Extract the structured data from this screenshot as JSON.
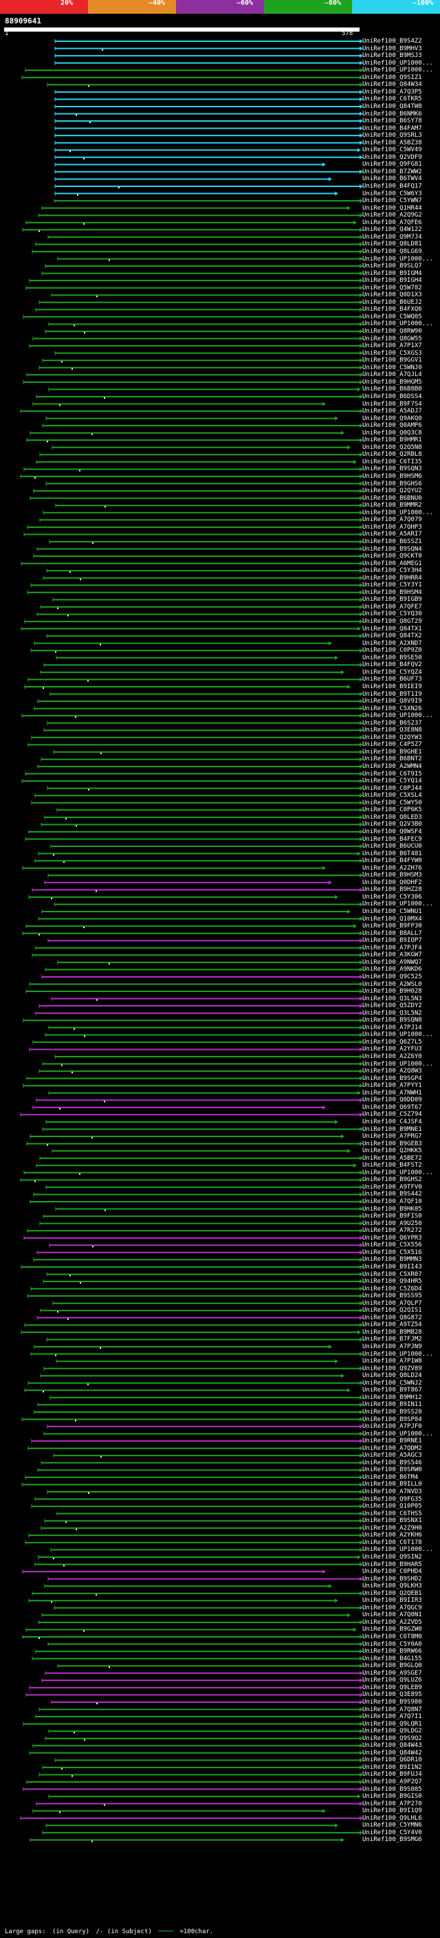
{
  "query": {
    "name": "88909641",
    "start": "1",
    "end": "578"
  },
  "scale": {
    "labels": [
      "20%",
      "~40%",
      "~60%",
      "~80%",
      "~100%"
    ],
    "colors": [
      "#e8262a",
      "#e48b27",
      "#8d2f9e",
      "#1da31d",
      "#2ad4ef"
    ]
  },
  "hits": [
    {
      "id": "UniRef100_B9S4Z2",
      "color": "#2ad4ef"
    },
    {
      "id": "UniRef100_B9MHV3",
      "color": "#2ad4ef"
    },
    {
      "id": "UniRef100_B9MSJ3",
      "color": "#2ad4ef"
    },
    {
      "id": "UniRef100_UP1000...",
      "color": "#2ad4ef"
    },
    {
      "id": "UniRef100_UP1000...",
      "color": "#1da31d"
    },
    {
      "id": "UniRef100_Q9SIZ1",
      "color": "#1da31d"
    },
    {
      "id": "UniRef100_Q84W34",
      "color": "#1da31d"
    },
    {
      "id": "UniRef100_A7Q3P5",
      "color": "#2ad4ef"
    },
    {
      "id": "UniRef100_C6TKR5",
      "color": "#2ad4ef"
    },
    {
      "id": "UniRef100_Q84TW8",
      "color": "#2ad4ef"
    },
    {
      "id": "UniRef100_B6NMK6",
      "color": "#2ad4ef"
    },
    {
      "id": "UniRef100_B6SY78",
      "color": "#2ad4ef"
    },
    {
      "id": "UniRef100_B4FAM7",
      "color": "#2ad4ef"
    },
    {
      "id": "UniRef100_Q9SRL3",
      "color": "#2ad4ef"
    },
    {
      "id": "UniRef100_A5BZ38",
      "color": "#2ad4ef"
    },
    {
      "id": "UniRef100_C5WV49",
      "color": "#2ad4ef"
    },
    {
      "id": "UniRef100_Q2VDF9",
      "color": "#2ad4ef"
    },
    {
      "id": "UniRef100_Q9FG81",
      "color": "#2ad4ef"
    },
    {
      "id": "UniRef100_B7ZWW2",
      "color": "#2ad4ef"
    },
    {
      "id": "UniRef100_B6TWV4",
      "color": "#2ad4ef"
    },
    {
      "id": "UniRef100_B4FQ17",
      "color": "#2ad4ef"
    },
    {
      "id": "UniRef100_C5W6Y3",
      "color": "#2ad4ef"
    },
    {
      "id": "UniRef100_C5YWN7",
      "color": "#1da31d"
    },
    {
      "id": "UniRef100_Q1HR44",
      "color": "#1da31d"
    },
    {
      "id": "UniRef100_A2Q9G2",
      "color": "#1da31d"
    },
    {
      "id": "UniRef100_A7QFE6",
      "color": "#1da31d"
    },
    {
      "id": "UniRef100_Q4W122",
      "color": "#1da31d"
    },
    {
      "id": "UniRef100_Q9M7J4",
      "color": "#1da31d"
    },
    {
      "id": "UniRef100_Q8LD81",
      "color": "#1da31d"
    },
    {
      "id": "UniRef100_Q8LG69",
      "color": "#1da31d"
    },
    {
      "id": "UniRef100_UP1000...",
      "color": "#1da31d"
    },
    {
      "id": "UniRef100_B9SLQ7",
      "color": "#1da31d"
    },
    {
      "id": "UniRef100_B9IGM4",
      "color": "#1da31d"
    },
    {
      "id": "UniRef100_B9IGH4",
      "color": "#1da31d"
    },
    {
      "id": "UniRef100_Q5W782",
      "color": "#1da31d"
    },
    {
      "id": "UniRef100_Q0D1X3",
      "color": "#1da31d"
    },
    {
      "id": "UniRef100_B6UEJ2",
      "color": "#1da31d"
    },
    {
      "id": "UniRef100_B4FXQ6",
      "color": "#1da31d"
    },
    {
      "id": "UniRef100_C5WQ05",
      "color": "#1da31d"
    },
    {
      "id": "UniRef100_UP1000...",
      "color": "#1da31d"
    },
    {
      "id": "UniRef100_Q8RW90",
      "color": "#1da31d"
    },
    {
      "id": "UniRef100_Q8GW55",
      "color": "#1da31d"
    },
    {
      "id": "UniRef100_A7P1X7",
      "color": "#1da31d"
    },
    {
      "id": "UniRef100_C5XGS3",
      "color": "#1da31d"
    },
    {
      "id": "UniRef100_B9GGV1",
      "color": "#1da31d"
    },
    {
      "id": "UniRef100_C5WNJ0",
      "color": "#1da31d"
    },
    {
      "id": "UniRef100_A7QJL4",
      "color": "#1da31d"
    },
    {
      "id": "UniRef100_B9HGM5",
      "color": "#1da31d"
    },
    {
      "id": "UniRef100_B6B8B0",
      "color": "#1da31d"
    },
    {
      "id": "UniRef100_B6DSS4",
      "color": "#1da31d"
    },
    {
      "id": "UniRef100_B9F7S4",
      "color": "#1da31d"
    },
    {
      "id": "UniRef100_A5ADJ7",
      "color": "#1da31d"
    },
    {
      "id": "UniRef100_Q9AKQ0",
      "color": "#1da31d"
    },
    {
      "id": "UniRef100_Q0AMP6",
      "color": "#1da31d"
    },
    {
      "id": "UniRef100_Q0Q3C8",
      "color": "#1da31d"
    },
    {
      "id": "UniRef100_B9HMR1",
      "color": "#1da31d"
    },
    {
      "id": "UniRef100_Q2Q5N8",
      "color": "#1da31d"
    },
    {
      "id": "UniRef100_Q2RBL8",
      "color": "#1da31d"
    },
    {
      "id": "UniRef100_C6TI35",
      "color": "#1da31d"
    },
    {
      "id": "UniRef100_B9SQN3",
      "color": "#1da31d"
    },
    {
      "id": "UniRef100_B9HSM6",
      "color": "#1da31d"
    },
    {
      "id": "UniRef100_B9GHS6",
      "color": "#1da31d"
    },
    {
      "id": "UniRef100_Q2QYU2",
      "color": "#1da31d"
    },
    {
      "id": "UniRef100_B6BNU0",
      "color": "#1da31d"
    },
    {
      "id": "UniRef100_B9MMR2",
      "color": "#1da31d"
    },
    {
      "id": "UniRef100_UP1000...",
      "color": "#1da31d"
    },
    {
      "id": "UniRef100_A7Q079",
      "color": "#1da31d"
    },
    {
      "id": "UniRef100_A7QHP3",
      "color": "#1da31d"
    },
    {
      "id": "UniRef100_A5ARI7",
      "color": "#1da31d"
    },
    {
      "id": "UniRef100_B6SSZ1",
      "color": "#1da31d"
    },
    {
      "id": "UniRef100_B9SQN4",
      "color": "#1da31d"
    },
    {
      "id": "UniRef100_Q9CKT0",
      "color": "#1da31d"
    },
    {
      "id": "UniRef100_A6MEG1",
      "color": "#1da31d"
    },
    {
      "id": "UniRef100_C5Y3H4",
      "color": "#1da31d"
    },
    {
      "id": "UniRef100_B9HRR4",
      "color": "#1da31d"
    },
    {
      "id": "UniRef100_C5Y3Y1",
      "color": "#1da31d"
    },
    {
      "id": "UniRef100_B9HSM4",
      "color": "#1da31d"
    },
    {
      "id": "UniRef100_B9IGB9",
      "color": "#1da31d"
    },
    {
      "id": "UniRef100_A7QFE7",
      "color": "#1da31d"
    },
    {
      "id": "UniRef100_C5YQ30",
      "color": "#1da31d"
    },
    {
      "id": "UniRef100_Q8GT29",
      "color": "#1da31d"
    },
    {
      "id": "UniRef100_Q84TX1",
      "color": "#1da31d"
    },
    {
      "id": "UniRef100_Q84TX2",
      "color": "#1da31d"
    },
    {
      "id": "UniRef100_A2XND7",
      "color": "#1da31d"
    },
    {
      "id": "UniRef100_C0P9Z0",
      "color": "#1da31d"
    },
    {
      "id": "UniRef100_B9SE50",
      "color": "#1da31d"
    },
    {
      "id": "UniRef100_B4FQV2",
      "color": "#1da31d"
    },
    {
      "id": "UniRef100_C5YQZ4",
      "color": "#1da31d"
    },
    {
      "id": "UniRef100_B6UF73",
      "color": "#1da31d"
    },
    {
      "id": "UniRef100_B9IEI9",
      "color": "#1da31d"
    },
    {
      "id": "UniRef100_B9T1I9",
      "color": "#1da31d"
    },
    {
      "id": "UniRef100_Q8V9I9",
      "color": "#1da31d"
    },
    {
      "id": "UniRef100_C5XN26",
      "color": "#1da31d"
    },
    {
      "id": "UniRef100_UP1000...",
      "color": "#1da31d"
    },
    {
      "id": "UniRef100_B6S237",
      "color": "#1da31d"
    },
    {
      "id": "UniRef100_Q3E8N8",
      "color": "#1da31d"
    },
    {
      "id": "UniRef100_Q2QYW3",
      "color": "#1da31d"
    },
    {
      "id": "UniRef100_C4P5Z7",
      "color": "#1da31d"
    },
    {
      "id": "UniRef100_B9GHE1",
      "color": "#1da31d"
    },
    {
      "id": "UniRef100_B6BNT2",
      "color": "#1da31d"
    },
    {
      "id": "UniRef100_A2WMN4",
      "color": "#1da31d"
    },
    {
      "id": "UniRef100_C6T9I5",
      "color": "#1da31d"
    },
    {
      "id": "UniRef100_C5YQ14",
      "color": "#1da31d"
    },
    {
      "id": "UniRef100_C0PJ44",
      "color": "#1da31d"
    },
    {
      "id": "UniRef100_C5XSL4",
      "color": "#1da31d"
    },
    {
      "id": "UniRef100_C5WY50",
      "color": "#1da31d"
    },
    {
      "id": "UniRef100_C0P6K5",
      "color": "#1da31d"
    },
    {
      "id": "UniRef100_Q8LED3",
      "color": "#1da31d"
    },
    {
      "id": "UniRef100_Q2V3B0",
      "color": "#1da31d"
    },
    {
      "id": "UniRef100_Q0WSF4",
      "color": "#1da31d"
    },
    {
      "id": "UniRef100_B4FEC9",
      "color": "#1da31d"
    },
    {
      "id": "UniRef100_B6UCU0",
      "color": "#1da31d"
    },
    {
      "id": "UniRef100_B6T481",
      "color": "#1da31d"
    },
    {
      "id": "UniRef100_B4FYW0",
      "color": "#1da31d"
    },
    {
      "id": "UniRef100_A2ZH76",
      "color": "#1da31d"
    },
    {
      "id": "UniRef100_B9HSM3",
      "color": "#1da31d"
    },
    {
      "id": "UniRef100_Q0DHF2",
      "color": "#b631c7"
    },
    {
      "id": "UniRef100_B9HZ28",
      "color": "#b631c7"
    },
    {
      "id": "UniRef100_C5Y306",
      "color": "#1da31d"
    },
    {
      "id": "UniRef100_UP1000...",
      "color": "#1da31d"
    },
    {
      "id": "UniRef100_C5WNU1",
      "color": "#1da31d"
    },
    {
      "id": "UniRef100_Q10MX4",
      "color": "#1da31d"
    },
    {
      "id": "UniRef100_B9FP30",
      "color": "#1da31d"
    },
    {
      "id": "UniRef100_B8ALL7",
      "color": "#1da31d"
    },
    {
      "id": "UniRef100_B9IOP7",
      "color": "#b631c7"
    },
    {
      "id": "UniRef100_A7PJF4",
      "color": "#1da31d"
    },
    {
      "id": "UniRef100_A3KGW7",
      "color": "#1da31d"
    },
    {
      "id": "UniRef100_A9NWQ7",
      "color": "#1da31d"
    },
    {
      "id": "UniRef100_A9NKD6",
      "color": "#1da31d"
    },
    {
      "id": "UniRef100_Q9C525",
      "color": "#b631c7"
    },
    {
      "id": "UniRef100_A2WSL0",
      "color": "#1da31d"
    },
    {
      "id": "UniRef100_B9H028",
      "color": "#1da31d"
    },
    {
      "id": "UniRef100_Q3L5N3",
      "color": "#b631c7"
    },
    {
      "id": "UniRef100_Q5ZDY2",
      "color": "#b631c7"
    },
    {
      "id": "UniRef100_Q3L5N2",
      "color": "#b631c7"
    },
    {
      "id": "UniRef100_B9SQN8",
      "color": "#1da31d"
    },
    {
      "id": "UniRef100_A7PJ14",
      "color": "#1da31d"
    },
    {
      "id": "UniRef100_UP1000...",
      "color": "#1da31d"
    },
    {
      "id": "UniRef100_Q6Z7L5",
      "color": "#1da31d"
    },
    {
      "id": "UniRef100_A2YFU3",
      "color": "#b631c7"
    },
    {
      "id": "UniRef100_A2Z6Y0",
      "color": "#1da31d"
    },
    {
      "id": "UniRef100_UP1000...",
      "color": "#1da31d"
    },
    {
      "id": "UniRef100_A2Q8W3",
      "color": "#1da31d"
    },
    {
      "id": "UniRef100_B9SGP4",
      "color": "#1da31d"
    },
    {
      "id": "UniRef100_A7PYY1",
      "color": "#1da31d"
    },
    {
      "id": "UniRef100_A7NWH1",
      "color": "#1da31d"
    },
    {
      "id": "UniRef100_Q0DD09",
      "color": "#b631c7"
    },
    {
      "id": "UniRef100_Q69T67",
      "color": "#b631c7"
    },
    {
      "id": "UniRef100_C5Z794",
      "color": "#b631c7"
    },
    {
      "id": "UniRef100_C4JSF4",
      "color": "#1da31d"
    },
    {
      "id": "UniRef100_B9MNE1",
      "color": "#1da31d"
    },
    {
      "id": "UniRef100_A7PRG7",
      "color": "#1da31d"
    },
    {
      "id": "UniRef100_B9GEB3",
      "color": "#1da31d"
    },
    {
      "id": "UniRef100_Q2HKK5",
      "color": "#1da31d"
    },
    {
      "id": "UniRef100_A5BE72",
      "color": "#1da31d"
    },
    {
      "id": "UniRef100_B4FST2",
      "color": "#1da31d"
    },
    {
      "id": "UniRef100_UP1000...",
      "color": "#1da31d"
    },
    {
      "id": "UniRef100_B9GHS2",
      "color": "#1da31d"
    },
    {
      "id": "UniRef100_A9TFV0",
      "color": "#1da31d"
    },
    {
      "id": "UniRef100_B9S442",
      "color": "#1da31d"
    },
    {
      "id": "UniRef100_A7QF10",
      "color": "#1da31d"
    },
    {
      "id": "UniRef100_B9HK05",
      "color": "#1da31d"
    },
    {
      "id": "UniRef100_B9FIS0",
      "color": "#1da31d"
    },
    {
      "id": "UniRef100_A9U250",
      "color": "#1da31d"
    },
    {
      "id": "UniRef100_A7R272",
      "color": "#1da31d"
    },
    {
      "id": "UniRef100_Q6YPR3",
      "color": "#b631c7"
    },
    {
      "id": "UniRef100_C5X556",
      "color": "#b631c7"
    },
    {
      "id": "UniRef100_C5X516",
      "color": "#b631c7"
    },
    {
      "id": "UniRef100_B9MMN3",
      "color": "#1da31d"
    },
    {
      "id": "UniRef100_B9II43",
      "color": "#1da31d"
    },
    {
      "id": "UniRef100_C5XR07",
      "color": "#1da31d"
    },
    {
      "id": "UniRef100_Q94HR5",
      "color": "#1da31d"
    },
    {
      "id": "UniRef100_C5Z6D4",
      "color": "#1da31d"
    },
    {
      "id": "UniRef100_B9SS95",
      "color": "#1da31d"
    },
    {
      "id": "UniRef100_A7QLP7",
      "color": "#1da31d"
    },
    {
      "id": "UniRef100_Q2QIS1",
      "color": "#1da31d"
    },
    {
      "id": "UniRef100_Q8G872",
      "color": "#b631c7"
    },
    {
      "id": "UniRef100_A9TZ54",
      "color": "#1da31d"
    },
    {
      "id": "UniRef100_B9MB28",
      "color": "#1da31d"
    },
    {
      "id": "UniRef100_B7FJM2",
      "color": "#1da31d"
    },
    {
      "id": "UniRef100_A7PJN9",
      "color": "#1da31d"
    },
    {
      "id": "UniRef100_UP1000...",
      "color": "#1da31d"
    },
    {
      "id": "UniRef100_A7P1W8",
      "color": "#1da31d"
    },
    {
      "id": "UniRef100_Q9ZV89",
      "color": "#1da31d"
    },
    {
      "id": "UniRef100_Q8LD24",
      "color": "#1da31d"
    },
    {
      "id": "UniRef100_C5WNJ2",
      "color": "#1da31d"
    },
    {
      "id": "UniRef100_B9T867",
      "color": "#1da31d"
    },
    {
      "id": "UniRef100_B9MH12",
      "color": "#1da31d"
    },
    {
      "id": "UniRef100_B9IN11",
      "color": "#1da31d"
    },
    {
      "id": "UniRef100_B9SS20",
      "color": "#1da31d"
    },
    {
      "id": "UniRef100_B9SP04",
      "color": "#1da31d"
    },
    {
      "id": "UniRef100_A7PJF0",
      "color": "#b631c7"
    },
    {
      "id": "UniRef100_UP1000...",
      "color": "#1da31d"
    },
    {
      "id": "UniRef100_B9RNE1",
      "color": "#b631c7"
    },
    {
      "id": "UniRef100_A7QDM2",
      "color": "#1da31d"
    },
    {
      "id": "UniRef100_A5AGC3",
      "color": "#1da31d"
    },
    {
      "id": "UniRef100_B9S546",
      "color": "#1da31d"
    },
    {
      "id": "UniRef100_B9SRW0",
      "color": "#1da31d"
    },
    {
      "id": "UniRef100_B6TM4",
      "color": "#1da31d"
    },
    {
      "id": "UniRef100_B9ILL0",
      "color": "#1da31d"
    },
    {
      "id": "UniRef100_A7NVD3",
      "color": "#1da31d"
    },
    {
      "id": "UniRef100_Q9FG35",
      "color": "#1da31d"
    },
    {
      "id": "UniRef100_Q10P05",
      "color": "#1da31d"
    },
    {
      "id": "UniRef100_C6THS5",
      "color": "#1da31d"
    },
    {
      "id": "UniRef100_B9SNX1",
      "color": "#1da31d"
    },
    {
      "id": "UniRef100_A2Z9H0",
      "color": "#1da31d"
    },
    {
      "id": "UniRef100_A2YKH6",
      "color": "#1da31d"
    },
    {
      "id": "UniRef100_C6T178",
      "color": "#1da31d"
    },
    {
      "id": "UniRef100_UP1000...",
      "color": "#1da31d"
    },
    {
      "id": "UniRef100_Q9SIN2",
      "color": "#1da31d"
    },
    {
      "id": "UniRef100_B9HAR5",
      "color": "#1da31d"
    },
    {
      "id": "UniRef100_C0PHD4",
      "color": "#b631c7"
    },
    {
      "id": "UniRef100_B9SHD2",
      "color": "#b631c7"
    },
    {
      "id": "UniRef100_Q9LKH3",
      "color": "#1da31d"
    },
    {
      "id": "UniRef100_Q2QEB1",
      "color": "#1da31d"
    },
    {
      "id": "UniRef100_B9IIR3",
      "color": "#1da31d"
    },
    {
      "id": "UniRef100_A7QGC9",
      "color": "#1da31d"
    },
    {
      "id": "UniRef100_A7Q0N1",
      "color": "#1da31d"
    },
    {
      "id": "UniRef100_A2ZVD5",
      "color": "#1da31d"
    },
    {
      "id": "UniRef100_B9GZW0",
      "color": "#1da31d"
    },
    {
      "id": "UniRef100_C6T8M0",
      "color": "#1da31d"
    },
    {
      "id": "UniRef100_C5Y0A0",
      "color": "#1da31d"
    },
    {
      "id": "UniRef100_B9RW66",
      "color": "#1da31d"
    },
    {
      "id": "UniRef100_B4G155",
      "color": "#1da31d"
    },
    {
      "id": "UniRef100_B9GLQ0",
      "color": "#1da31d"
    },
    {
      "id": "UniRef100_A9SGE7",
      "color": "#b631c7"
    },
    {
      "id": "UniRef100_Q9LUZ6",
      "color": "#b631c7"
    },
    {
      "id": "UniRef100_Q9LEB9",
      "color": "#b631c7"
    },
    {
      "id": "UniRef100_Q3E895",
      "color": "#b631c7"
    },
    {
      "id": "UniRef100_B9S980",
      "color": "#b631c7"
    },
    {
      "id": "UniRef100_A7Q8N7",
      "color": "#1da31d"
    },
    {
      "id": "UniRef100_A7Q7I1",
      "color": "#1da31d"
    },
    {
      "id": "UniRef100_Q9LQR1",
      "color": "#1da31d"
    },
    {
      "id": "UniRef100_Q9LDG2",
      "color": "#1da31d"
    },
    {
      "id": "UniRef100_Q9S9Q2",
      "color": "#1da31d"
    },
    {
      "id": "UniRef100_Q84W43",
      "color": "#1da31d"
    },
    {
      "id": "UniRef100_Q84W42",
      "color": "#1da31d"
    },
    {
      "id": "UniRef100_Q6DR10",
      "color": "#1da31d"
    },
    {
      "id": "UniRef100_B9I1N2",
      "color": "#1da31d"
    },
    {
      "id": "UniRef100_B9FUJ4",
      "color": "#1da31d"
    },
    {
      "id": "UniRef100_A9P2Q7",
      "color": "#1da31d"
    },
    {
      "id": "UniRef100_B9S085",
      "color": "#b631c7"
    },
    {
      "id": "UniRef100_B9GIS0",
      "color": "#1da31d"
    },
    {
      "id": "UniRef100_A7P270",
      "color": "#b631c7"
    },
    {
      "id": "UniRef100_B9I1Q9",
      "color": "#1da31d"
    },
    {
      "id": "UniRef100_Q9LHL6",
      "color": "#b631c7"
    },
    {
      "id": "UniRef100_C5YMN6",
      "color": "#1da31d"
    },
    {
      "id": "UniRef100_C5Y4V0",
      "color": "#1da31d"
    },
    {
      "id": "UniRef100_B9SMG6",
      "color": "#1da31d"
    }
  ],
  "legend": {
    "large_gaps": "Large gaps:",
    "in_query": "(in Query)",
    "in_subject": "/- (in Subject)",
    "scale_note": "=100char."
  }
}
